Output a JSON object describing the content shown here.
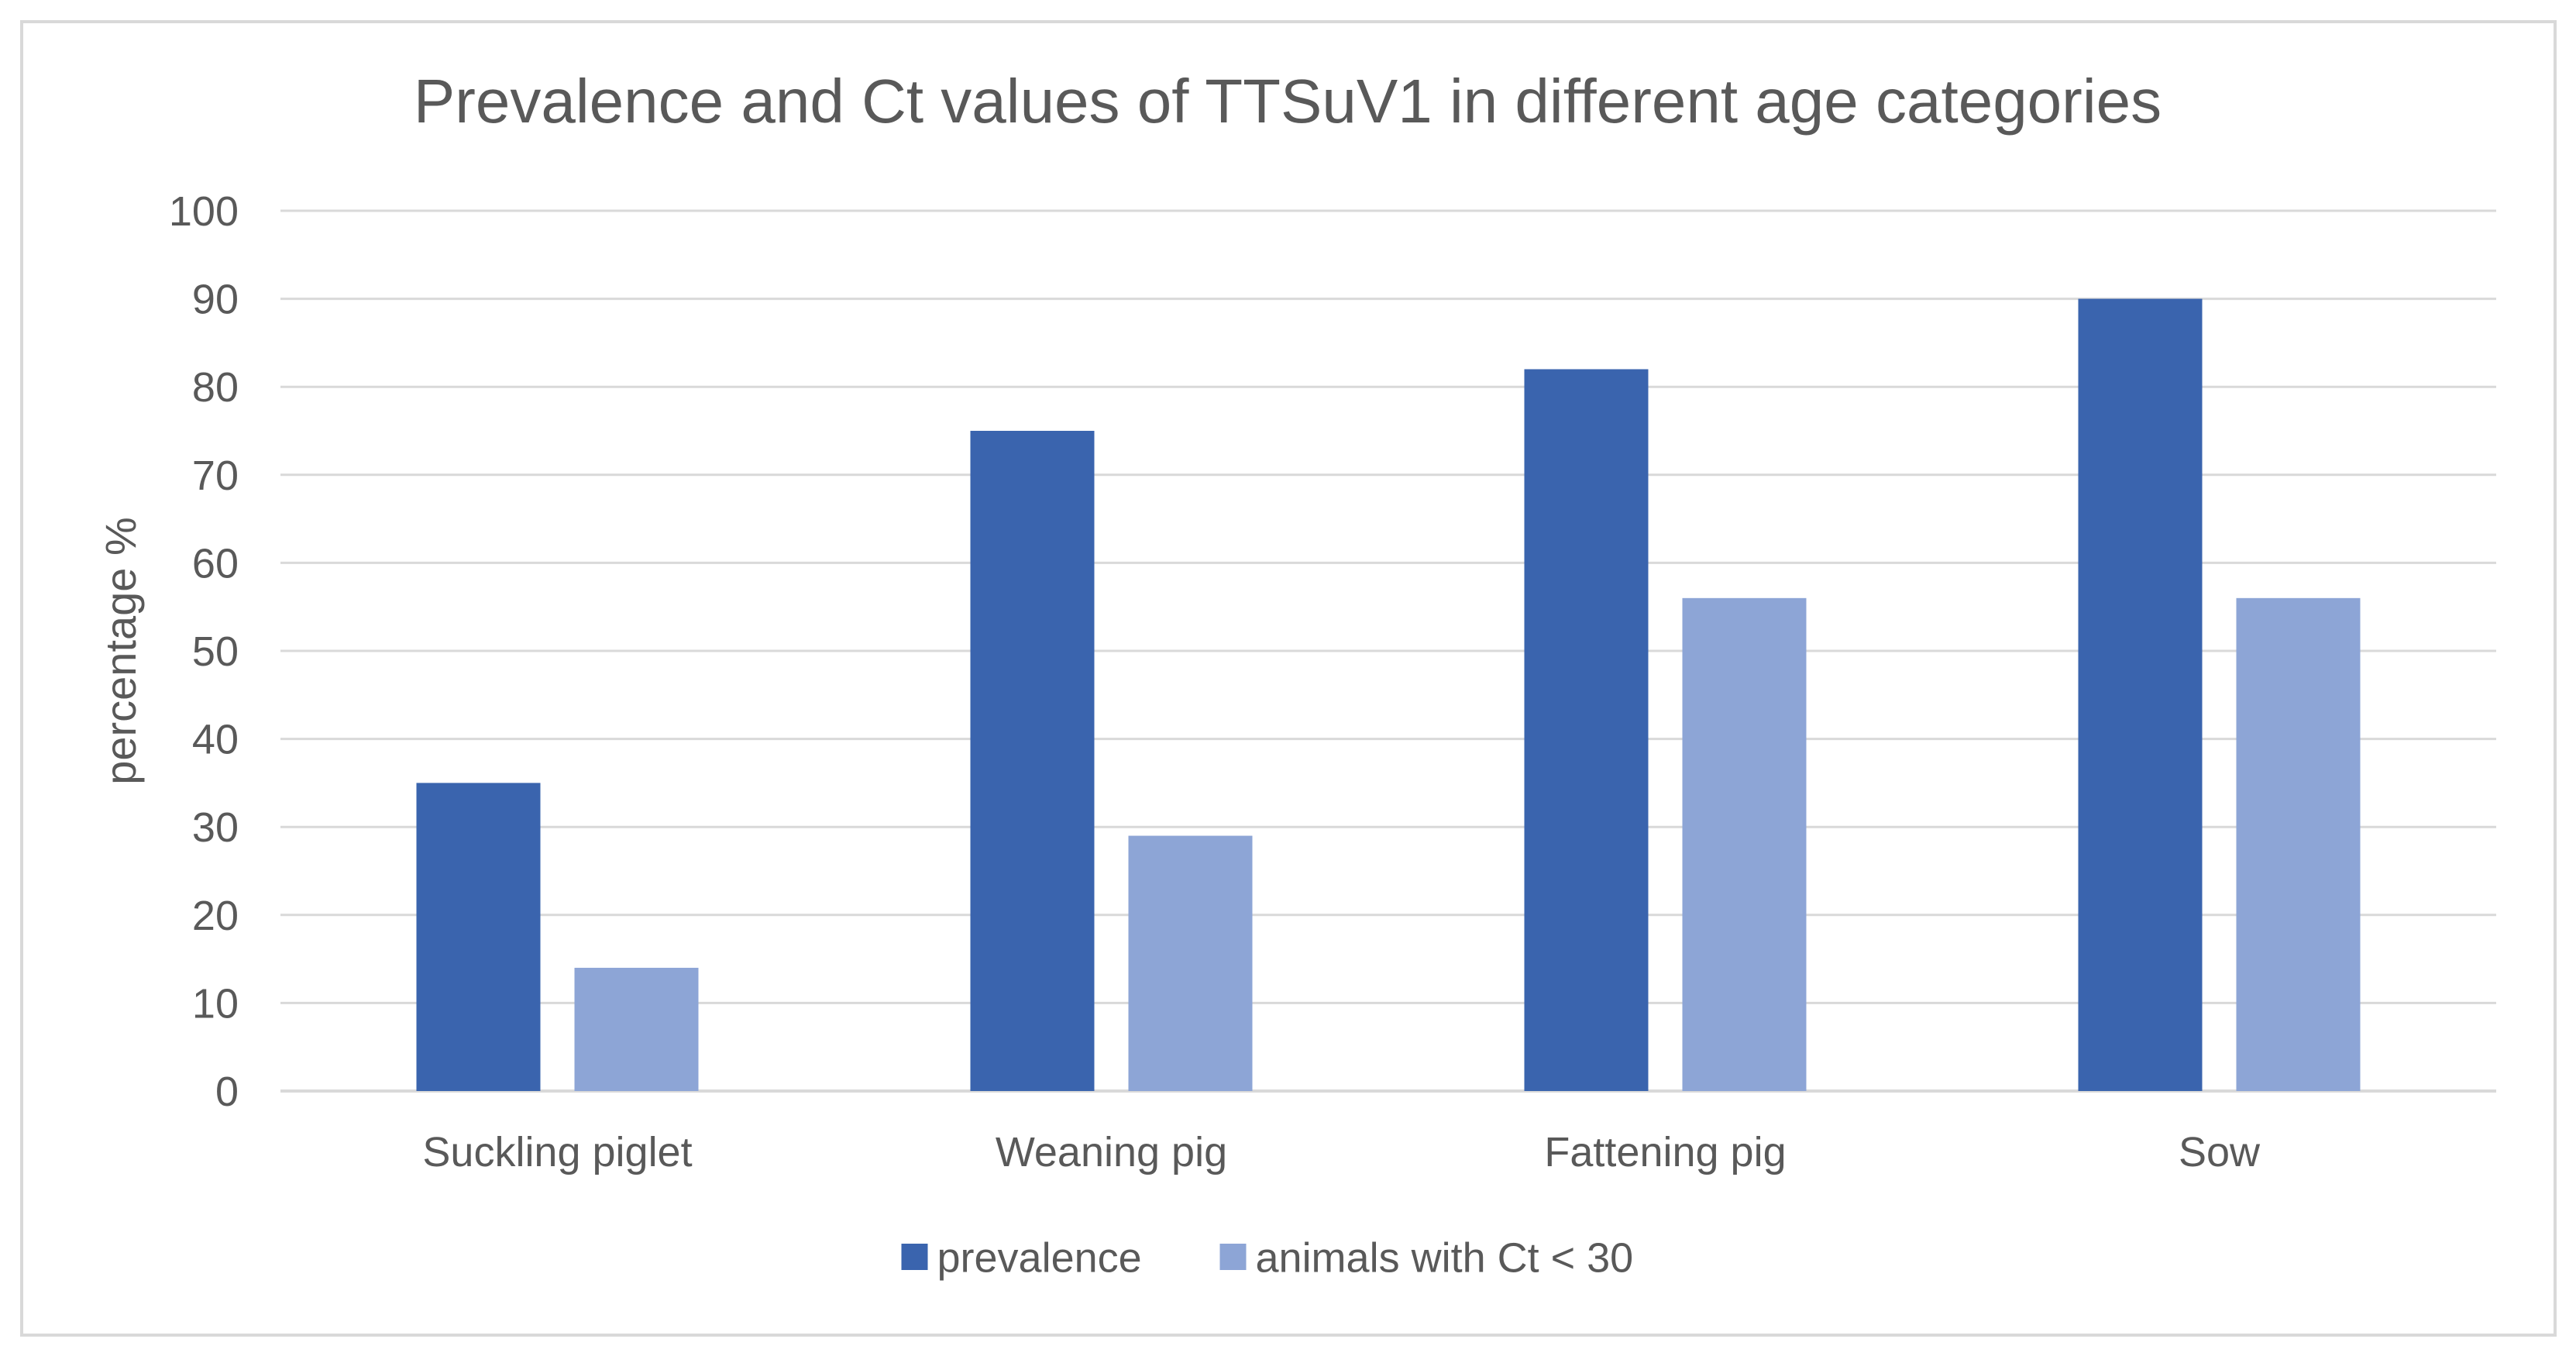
{
  "chart_data": {
    "type": "bar",
    "title": "Prevalence and Ct values of TTSuV1 in different age categories",
    "xlabel": "",
    "ylabel": "percentage %",
    "ylim": [
      0,
      100
    ],
    "yticks": [
      0,
      10,
      20,
      30,
      40,
      50,
      60,
      70,
      80,
      90,
      100
    ],
    "grid": true,
    "legend_position": "bottom",
    "categories": [
      "Suckling piglet",
      "Weaning pig",
      "Fattening pig",
      "Sow"
    ],
    "series": [
      {
        "name": "prevalence",
        "values": [
          35,
          75,
          82,
          90
        ],
        "color": "#3A64AE"
      },
      {
        "name": "animals with Ct < 30",
        "values": [
          14,
          29,
          56,
          56
        ],
        "color": "#8DA5D6"
      }
    ]
  },
  "colors": {
    "frame": "#D9D9D9",
    "grid": "#D9D9D9",
    "text": "#595959",
    "title": "#595959"
  }
}
